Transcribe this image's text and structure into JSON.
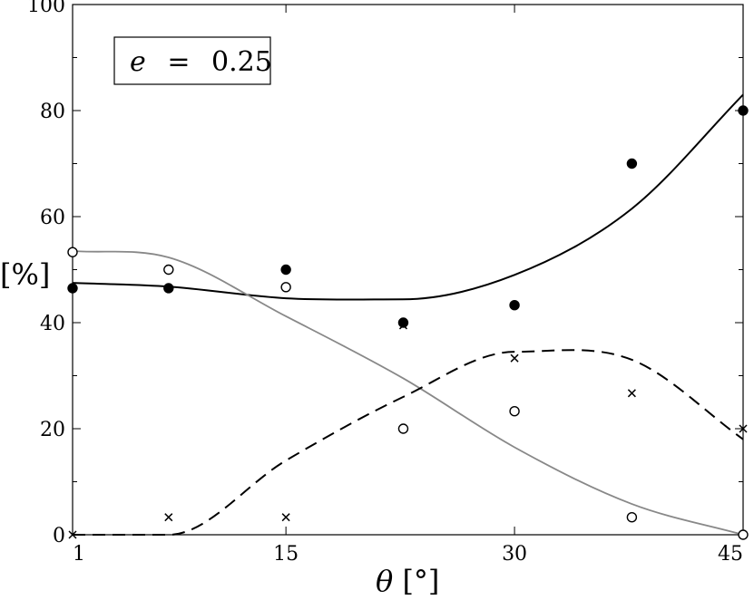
{
  "chart_data": {
    "type": "scatter",
    "x": [
      1,
      7.3,
      15,
      22.7,
      30,
      37.7,
      45
    ],
    "xlim": [
      1,
      45
    ],
    "ylim": [
      0,
      100
    ],
    "xticks": [
      "1",
      "15",
      "30",
      "45"
    ],
    "yticks": [
      "0",
      "20",
      "40",
      "60",
      "80",
      "100"
    ],
    "xtick_values": [
      1,
      15,
      30,
      45
    ],
    "ytick_values": [
      0,
      20,
      40,
      60,
      80,
      100
    ],
    "xlabel": {
      "symbol": "θ",
      "unit": "[°]"
    },
    "ylabel": "[%]",
    "annotation": {
      "variable": "e",
      "equals": "=",
      "value": "0.25"
    },
    "grid": false,
    "series": [
      {
        "marker": "filled-circle",
        "values": [
          46.5,
          46.5,
          50,
          40,
          43.3,
          70,
          80
        ],
        "curve": "solid",
        "curve_color": "#000000",
        "fit_values": [
          47.5,
          46.8,
          44.6,
          44.4,
          49.0,
          61.5,
          83.0
        ]
      },
      {
        "marker": "open-circle",
        "values": [
          53.3,
          50,
          46.7,
          20,
          23.3,
          3.3,
          0
        ],
        "curve": "solid",
        "curve_color": "#888888",
        "fit_values": [
          53.5,
          52.3,
          41.2,
          29.5,
          16.5,
          5.8,
          0
        ]
      },
      {
        "marker": "cross",
        "values": [
          0,
          3.3,
          3.3,
          39.5,
          33.3,
          26.7,
          20
        ],
        "curve": "dashed",
        "curve_color": "#000000",
        "fit_values": [
          0,
          0,
          14.0,
          26.0,
          34.5,
          33.0,
          18.0
        ]
      }
    ]
  }
}
